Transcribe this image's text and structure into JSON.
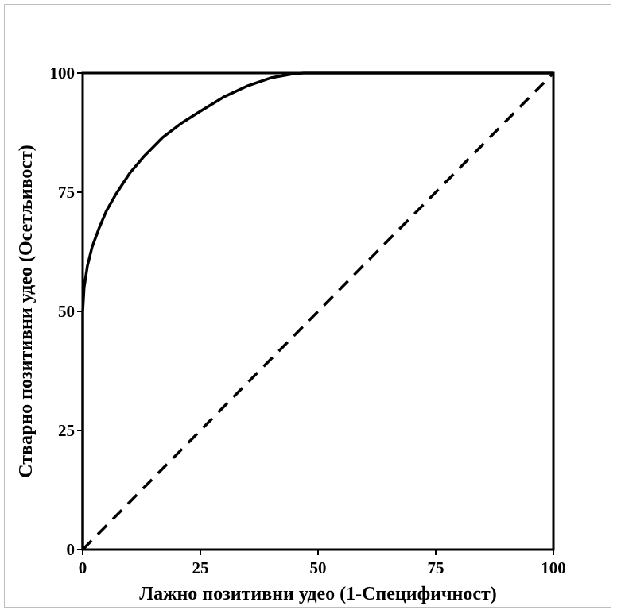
{
  "chart_data": {
    "type": "line",
    "xlabel": "Лажно позитивни удео (1-Специфичност)",
    "ylabel": "Стварно позитивни удео (Осетљивост)",
    "xlim": [
      0,
      100
    ],
    "ylim": [
      0,
      100
    ],
    "x_ticks": [
      0,
      25,
      50,
      75,
      100
    ],
    "y_ticks": [
      0,
      25,
      50,
      75,
      100
    ],
    "grid": false,
    "series": [
      {
        "style": "solid",
        "color": "#000000",
        "points": [
          [
            0,
            0
          ],
          [
            0,
            50
          ],
          [
            0.3,
            55
          ],
          [
            1,
            59.5
          ],
          [
            2,
            63.5
          ],
          [
            3.5,
            67.5
          ],
          [
            5,
            71
          ],
          [
            7,
            74.5
          ],
          [
            10,
            79
          ],
          [
            13,
            82.5
          ],
          [
            17,
            86.5
          ],
          [
            21,
            89.5
          ],
          [
            25,
            92
          ],
          [
            30,
            95
          ],
          [
            35,
            97.3
          ],
          [
            40,
            99
          ],
          [
            45,
            99.9
          ],
          [
            47,
            100
          ],
          [
            100,
            100
          ]
        ]
      },
      {
        "style": "dashed",
        "color": "#000000",
        "points": [
          [
            0,
            0
          ],
          [
            100,
            100
          ]
        ]
      }
    ]
  }
}
